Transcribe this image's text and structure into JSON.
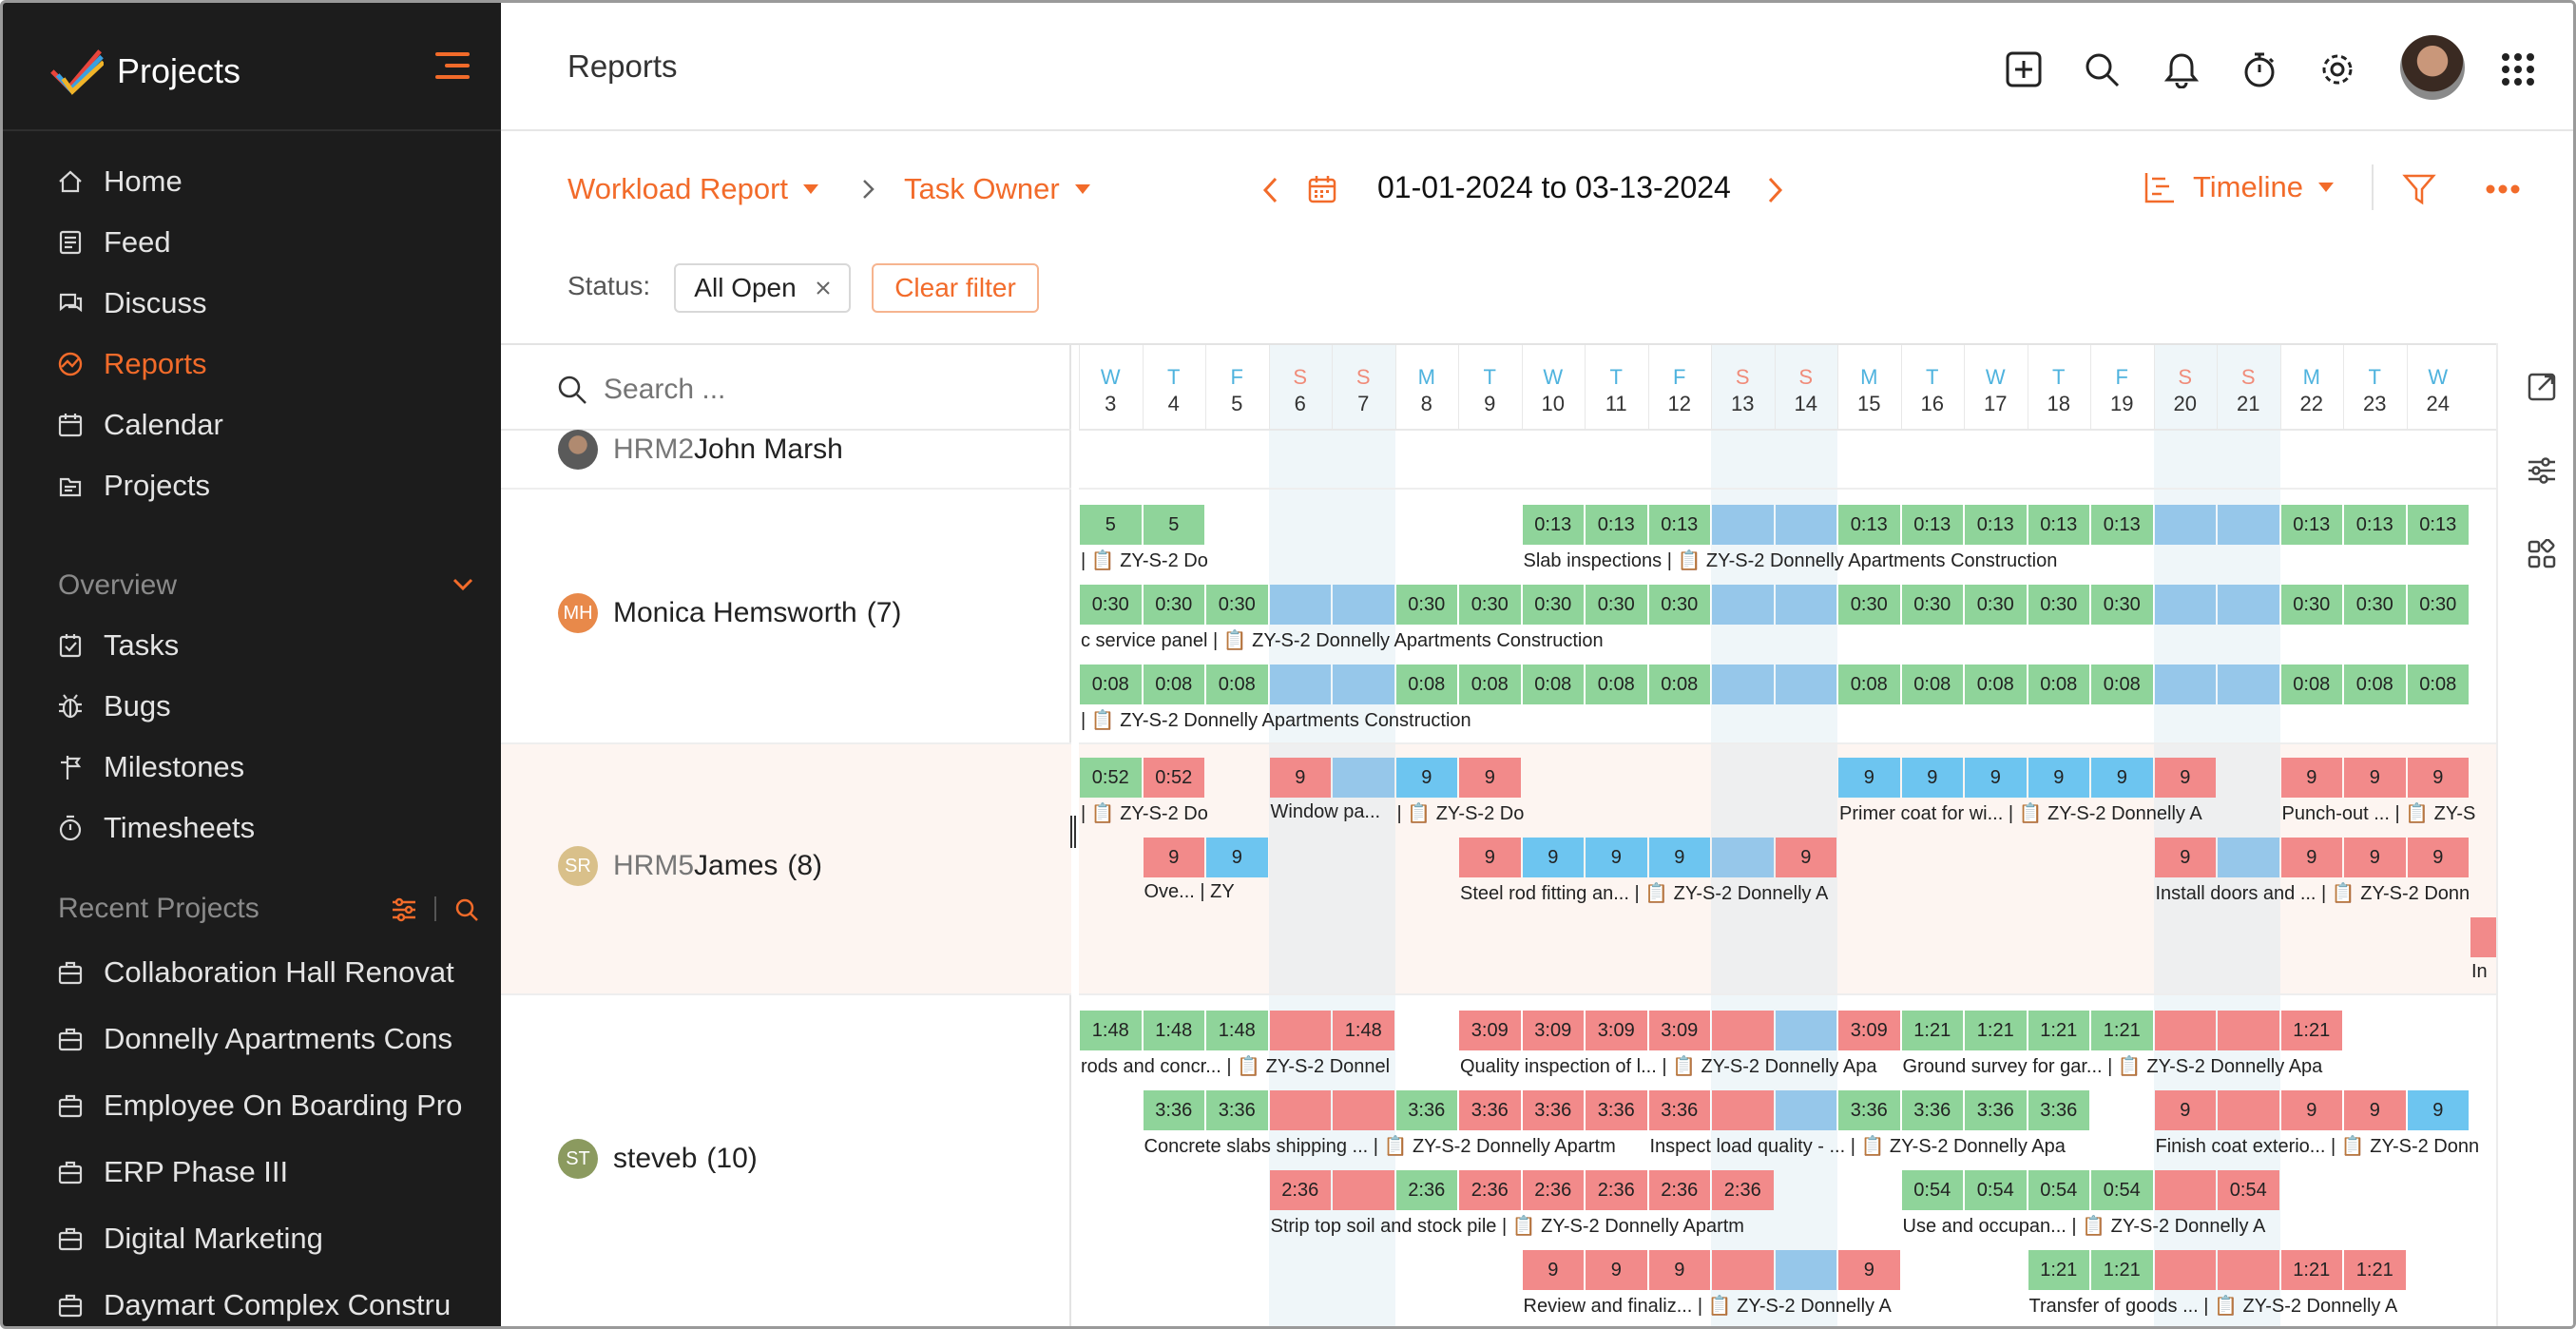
{
  "sidebar": {
    "app_name": "Projects",
    "nav": [
      {
        "label": "Home",
        "icon": "home-icon"
      },
      {
        "label": "Feed",
        "icon": "feed-icon"
      },
      {
        "label": "Discuss",
        "icon": "discuss-icon"
      },
      {
        "label": "Reports",
        "icon": "reports-icon",
        "active": true
      },
      {
        "label": "Calendar",
        "icon": "calendar-icon"
      },
      {
        "label": "Projects",
        "icon": "projects-icon"
      }
    ],
    "overview_label": "Overview",
    "overview": [
      {
        "label": "Tasks",
        "icon": "tasks-icon"
      },
      {
        "label": "Bugs",
        "icon": "bug-icon"
      },
      {
        "label": "Milestones",
        "icon": "milestone-icon"
      },
      {
        "label": "Timesheets",
        "icon": "timer-icon"
      }
    ],
    "recent_label": "Recent Projects",
    "recent": [
      "Collaboration Hall Renovat",
      "Donnelly Apartments Cons",
      "Employee On Boarding Pro",
      "ERP Phase III",
      "Digital Marketing",
      "Daymart Complex Constru"
    ]
  },
  "header": {
    "title": "Reports"
  },
  "toolbar": {
    "report": "Workload Report",
    "group": "Task Owner",
    "date_range_from": "01-01-2024",
    "date_range_to_word": "to",
    "date_range_to": "03-13-2024",
    "view": "Timeline",
    "status_label": "Status:",
    "status_value": "All Open",
    "clear_filter": "Clear filter",
    "search_placeholder": "Search ..."
  },
  "colors": {
    "accent": "#f26b2a",
    "green": "#8fd49a",
    "blue": "#96c7ea",
    "red": "#f28a8a",
    "cyan": "#6dc5f0"
  },
  "days": [
    {
      "l": "W",
      "n": "3"
    },
    {
      "l": "T",
      "n": "4"
    },
    {
      "l": "F",
      "n": "5"
    },
    {
      "l": "S",
      "n": "6",
      "we": true
    },
    {
      "l": "S",
      "n": "7",
      "we": true
    },
    {
      "l": "M",
      "n": "8"
    },
    {
      "l": "T",
      "n": "9"
    },
    {
      "l": "W",
      "n": "10"
    },
    {
      "l": "T",
      "n": "11"
    },
    {
      "l": "F",
      "n": "12"
    },
    {
      "l": "S",
      "n": "13",
      "we": true
    },
    {
      "l": "S",
      "n": "14",
      "we": true
    },
    {
      "l": "M",
      "n": "15"
    },
    {
      "l": "T",
      "n": "16"
    },
    {
      "l": "W",
      "n": "17"
    },
    {
      "l": "T",
      "n": "18"
    },
    {
      "l": "F",
      "n": "19"
    },
    {
      "l": "S",
      "n": "20",
      "we": true
    },
    {
      "l": "S",
      "n": "21",
      "we": true
    },
    {
      "l": "M",
      "n": "22"
    },
    {
      "l": "T",
      "n": "23"
    },
    {
      "l": "W",
      "n": "24"
    }
  ],
  "users": [
    {
      "code": "HRM2",
      "name": "John Marsh",
      "count": "",
      "initials": "",
      "photo": true
    },
    {
      "code": "",
      "name": "Monica Hemsworth",
      "count": "(7)",
      "initials": "MH",
      "color": "#e8894a"
    },
    {
      "code": "HRM5",
      "name": "James",
      "count": "(8)",
      "initials": "SR",
      "color": "#d9c08a"
    },
    {
      "code": "",
      "name": "steveb",
      "count": "(10)",
      "initials": "ST",
      "color": "#8b9a5f"
    }
  ],
  "bars": [
    {
      "y": 0,
      "cells": [
        [
          0,
          "g",
          "5"
        ],
        [
          1,
          "g",
          "5"
        ]
      ],
      "cap": [
        [
          0,
          "| 📋 ZY-S-2 Do"
        ]
      ]
    },
    {
      "y": 0,
      "cells": [
        [
          7,
          "g",
          "0:13"
        ],
        [
          8,
          "g",
          "0:13"
        ],
        [
          9,
          "g",
          "0:13"
        ],
        [
          10,
          "b",
          ""
        ],
        [
          11,
          "b",
          ""
        ],
        [
          12,
          "g",
          "0:13"
        ],
        [
          13,
          "g",
          "0:13"
        ],
        [
          14,
          "g",
          "0:13"
        ],
        [
          15,
          "g",
          "0:13"
        ],
        [
          16,
          "g",
          "0:13"
        ],
        [
          17,
          "b",
          ""
        ],
        [
          18,
          "b",
          ""
        ],
        [
          19,
          "g",
          "0:13"
        ],
        [
          20,
          "g",
          "0:13"
        ],
        [
          21,
          "g",
          "0:13"
        ]
      ],
      "cap": [
        [
          7,
          "Slab inspections  |  📋 ZY-S-2 Donnelly Apartments Construction"
        ]
      ]
    },
    {
      "y": 1,
      "cells": [
        [
          0,
          "g",
          "0:30"
        ],
        [
          1,
          "g",
          "0:30"
        ],
        [
          2,
          "g",
          "0:30"
        ],
        [
          3,
          "b",
          ""
        ],
        [
          4,
          "b",
          ""
        ],
        [
          5,
          "g",
          "0:30"
        ],
        [
          6,
          "g",
          "0:30"
        ],
        [
          7,
          "g",
          "0:30"
        ],
        [
          8,
          "g",
          "0:30"
        ],
        [
          9,
          "g",
          "0:30"
        ],
        [
          10,
          "b",
          ""
        ],
        [
          11,
          "b",
          ""
        ],
        [
          12,
          "g",
          "0:30"
        ],
        [
          13,
          "g",
          "0:30"
        ],
        [
          14,
          "g",
          "0:30"
        ],
        [
          15,
          "g",
          "0:30"
        ],
        [
          16,
          "g",
          "0:30"
        ],
        [
          17,
          "b",
          ""
        ],
        [
          18,
          "b",
          ""
        ],
        [
          19,
          "g",
          "0:30"
        ],
        [
          20,
          "g",
          "0:30"
        ],
        [
          21,
          "g",
          "0:30"
        ]
      ],
      "cap": [
        [
          0,
          "c service panel  |  📋 ZY-S-2 Donnelly Apartments Construction"
        ]
      ]
    },
    {
      "y": 2,
      "cells": [
        [
          0,
          "g",
          "0:08"
        ],
        [
          1,
          "g",
          "0:08"
        ],
        [
          2,
          "g",
          "0:08"
        ],
        [
          3,
          "b",
          ""
        ],
        [
          4,
          "b",
          ""
        ],
        [
          5,
          "g",
          "0:08"
        ],
        [
          6,
          "g",
          "0:08"
        ],
        [
          7,
          "g",
          "0:08"
        ],
        [
          8,
          "g",
          "0:08"
        ],
        [
          9,
          "g",
          "0:08"
        ],
        [
          10,
          "b",
          ""
        ],
        [
          11,
          "b",
          ""
        ],
        [
          12,
          "g",
          "0:08"
        ],
        [
          13,
          "g",
          "0:08"
        ],
        [
          14,
          "g",
          "0:08"
        ],
        [
          15,
          "g",
          "0:08"
        ],
        [
          16,
          "g",
          "0:08"
        ],
        [
          17,
          "b",
          ""
        ],
        [
          18,
          "b",
          ""
        ],
        [
          19,
          "g",
          "0:08"
        ],
        [
          20,
          "g",
          "0:08"
        ],
        [
          21,
          "g",
          "0:08"
        ]
      ],
      "cap": [
        [
          0,
          "| 📋 ZY-S-2 Donnelly Apartments Construction"
        ]
      ]
    },
    {
      "y": 3,
      "cells": [
        [
          0,
          "g",
          "0:52"
        ],
        [
          1,
          "r",
          "0:52"
        ]
      ],
      "cap": [
        [
          0,
          "| 📋 ZY-S-2 Do"
        ]
      ]
    },
    {
      "y": 3,
      "cells": [
        [
          3,
          "r",
          "9"
        ],
        [
          4,
          "b",
          ""
        ],
        [
          5,
          "c",
          "9"
        ],
        [
          6,
          "r",
          "9"
        ]
      ],
      "cap": [
        [
          3,
          "Window pa..."
        ],
        [
          5,
          "| 📋 ZY-S-2 Do"
        ]
      ]
    },
    {
      "y": 3,
      "cells": [
        [
          12,
          "c",
          "9"
        ],
        [
          13,
          "c",
          "9"
        ],
        [
          14,
          "c",
          "9"
        ],
        [
          15,
          "c",
          "9"
        ],
        [
          16,
          "c",
          "9"
        ],
        [
          17,
          "r",
          "9"
        ]
      ],
      "cap": [
        [
          12,
          "Primer coat for wi...  |  📋 ZY-S-2 Donnelly A"
        ]
      ]
    },
    {
      "y": 3,
      "cells": [
        [
          19,
          "r",
          "9"
        ],
        [
          20,
          "r",
          "9"
        ],
        [
          21,
          "r",
          "9"
        ]
      ],
      "cap": [
        [
          19,
          "Punch-out ...  |  📋 ZY-S"
        ]
      ]
    },
    {
      "y": 4,
      "cells": [
        [
          1,
          "r",
          "9"
        ],
        [
          2,
          "c",
          "9"
        ]
      ],
      "cap": [
        [
          1,
          "Ove...  |  ZY"
        ]
      ]
    },
    {
      "y": 4,
      "cells": [
        [
          6,
          "r",
          "9"
        ],
        [
          7,
          "c",
          "9"
        ],
        [
          8,
          "c",
          "9"
        ],
        [
          9,
          "c",
          "9"
        ],
        [
          10,
          "b",
          ""
        ],
        [
          11,
          "r",
          "9"
        ]
      ],
      "cap": [
        [
          6,
          "Steel rod fitting an...  |  📋 ZY-S-2 Donnelly A"
        ]
      ]
    },
    {
      "y": 4,
      "cells": [
        [
          17,
          "r",
          "9"
        ],
        [
          18,
          "b",
          ""
        ],
        [
          19,
          "r",
          "9"
        ],
        [
          20,
          "r",
          "9"
        ],
        [
          21,
          "r",
          "9"
        ]
      ],
      "cap": [
        [
          17,
          "Install doors and ...  |  📋 ZY-S-2 Donn"
        ]
      ]
    },
    {
      "y": 5,
      "cells": [
        [
          22,
          "r",
          ""
        ]
      ],
      "cap": [
        [
          22,
          "In"
        ]
      ]
    },
    {
      "y": 6,
      "cells": [
        [
          0,
          "g",
          "1:48"
        ],
        [
          1,
          "g",
          "1:48"
        ],
        [
          2,
          "g",
          "1:48"
        ],
        [
          3,
          "r",
          ""
        ],
        [
          4,
          "r",
          "1:48"
        ]
      ],
      "cap": [
        [
          0,
          "rods and concr...  |  📋 ZY-S-2 Donnel"
        ]
      ]
    },
    {
      "y": 6,
      "cells": [
        [
          6,
          "r",
          "3:09"
        ],
        [
          7,
          "r",
          "3:09"
        ],
        [
          8,
          "r",
          "3:09"
        ],
        [
          9,
          "r",
          "3:09"
        ],
        [
          10,
          "r",
          ""
        ],
        [
          11,
          "b",
          ""
        ],
        [
          12,
          "r",
          "3:09"
        ]
      ],
      "cap": [
        [
          6,
          "Quality inspection of l...  |  📋 ZY-S-2 Donnelly Apa"
        ]
      ]
    },
    {
      "y": 6,
      "cells": [
        [
          13,
          "g",
          "1:21"
        ],
        [
          14,
          "g",
          "1:21"
        ],
        [
          15,
          "g",
          "1:21"
        ],
        [
          16,
          "g",
          "1:21"
        ],
        [
          17,
          "r",
          ""
        ],
        [
          18,
          "r",
          ""
        ],
        [
          19,
          "r",
          "1:21"
        ]
      ],
      "cap": [
        [
          13,
          "Ground survey for gar...  |  📋 ZY-S-2 Donnelly Apa"
        ]
      ]
    },
    {
      "y": 7,
      "cells": [
        [
          1,
          "g",
          "3:36"
        ],
        [
          2,
          "g",
          "3:36"
        ],
        [
          3,
          "r",
          ""
        ],
        [
          4,
          "r",
          ""
        ],
        [
          5,
          "g",
          "3:36"
        ],
        [
          6,
          "r",
          "3:36"
        ],
        [
          7,
          "r",
          "3:36"
        ],
        [
          8,
          "r",
          "3:36"
        ]
      ],
      "cap": [
        [
          1,
          "Concrete slabs shipping ...  |  📋 ZY-S-2 Donnelly Apartm"
        ]
      ]
    },
    {
      "y": 7,
      "cells": [
        [
          9,
          "r",
          "3:36"
        ],
        [
          10,
          "r",
          ""
        ],
        [
          11,
          "b",
          ""
        ],
        [
          12,
          "g",
          "3:36"
        ],
        [
          13,
          "g",
          "3:36"
        ],
        [
          14,
          "g",
          "3:36"
        ],
        [
          15,
          "g",
          "3:36"
        ]
      ],
      "cap": [
        [
          9,
          "Inspect load quality - ...  |  📋 ZY-S-2 Donnelly Apa"
        ]
      ]
    },
    {
      "y": 7,
      "cells": [
        [
          17,
          "r",
          "9"
        ],
        [
          18,
          "r",
          ""
        ],
        [
          19,
          "r",
          "9"
        ],
        [
          20,
          "r",
          "9"
        ],
        [
          21,
          "c",
          "9"
        ]
      ],
      "cap": [
        [
          17,
          "Finish coat exterio...  |  📋 ZY-S-2 Donn"
        ]
      ]
    },
    {
      "y": 8,
      "cells": [
        [
          3,
          "r",
          "2:36"
        ],
        [
          4,
          "r",
          ""
        ],
        [
          5,
          "g",
          "2:36"
        ],
        [
          6,
          "r",
          "2:36"
        ],
        [
          7,
          "r",
          "2:36"
        ],
        [
          8,
          "r",
          "2:36"
        ],
        [
          9,
          "r",
          "2:36"
        ],
        [
          10,
          "r",
          "2:36"
        ]
      ],
      "cap": [
        [
          3,
          "Strip top soil and stock pile  |  📋 ZY-S-2 Donnelly Apartm"
        ]
      ]
    },
    {
      "y": 8,
      "cells": [
        [
          13,
          "g",
          "0:54"
        ],
        [
          14,
          "g",
          "0:54"
        ],
        [
          15,
          "g",
          "0:54"
        ],
        [
          16,
          "g",
          "0:54"
        ],
        [
          17,
          "r",
          ""
        ],
        [
          18,
          "r",
          "0:54"
        ]
      ],
      "cap": [
        [
          13,
          "Use and occupan...  |  📋 ZY-S-2 Donnelly A"
        ]
      ]
    },
    {
      "y": 9,
      "cells": [
        [
          7,
          "r",
          "9"
        ],
        [
          8,
          "r",
          "9"
        ],
        [
          9,
          "r",
          "9"
        ],
        [
          10,
          "r",
          ""
        ],
        [
          11,
          "b",
          ""
        ],
        [
          12,
          "r",
          "9"
        ]
      ],
      "cap": [
        [
          7,
          "Review and finaliz...  |  📋 ZY-S-2 Donnelly A"
        ]
      ]
    },
    {
      "y": 9,
      "cells": [
        [
          15,
          "g",
          "1:21"
        ],
        [
          16,
          "g",
          "1:21"
        ],
        [
          17,
          "r",
          ""
        ],
        [
          18,
          "r",
          ""
        ],
        [
          19,
          "r",
          "1:21"
        ],
        [
          20,
          "r",
          "1:21"
        ]
      ],
      "cap": [
        [
          15,
          "Transfer of goods ...  |  📋 ZY-S-2 Donnelly A"
        ]
      ]
    }
  ]
}
